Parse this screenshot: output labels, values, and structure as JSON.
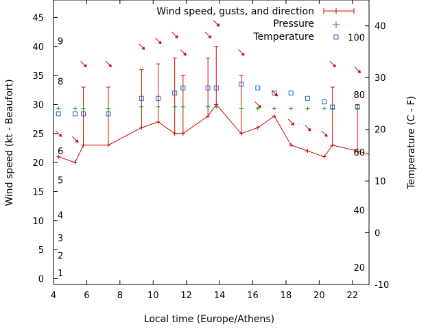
{
  "chart_data": {
    "type": "line",
    "xlabel": "Local time (Europe/Athens)",
    "ylabel": "Wind speed (kt - Beaufort)",
    "y2label": "Temperature (C - F)",
    "xlim": [
      4,
      23
    ],
    "ylim": [
      -1,
      48
    ],
    "y2lim": [
      -10,
      45
    ],
    "x_ticks": [
      "4",
      "6",
      "8",
      "10",
      "12",
      "14",
      "16",
      "18",
      "20",
      "22"
    ],
    "y_ticks": [
      "0",
      "5",
      "10",
      "15",
      "20",
      "25",
      "30",
      "35",
      "40",
      "45"
    ],
    "y2_ticks": [
      "-10",
      "0",
      "10",
      "20",
      "30",
      "40"
    ],
    "beaufort_labels": [
      {
        "text": "1",
        "kt": 1
      },
      {
        "text": "2",
        "kt": 4
      },
      {
        "text": "3",
        "kt": 7
      },
      {
        "text": "4",
        "kt": 11
      },
      {
        "text": "5",
        "kt": 17
      },
      {
        "text": "6",
        "kt": 22
      },
      {
        "text": "8",
        "kt": 34
      },
      {
        "text": "9",
        "kt": 41
      }
    ],
    "fahrenheit_labels": [
      {
        "text": "20",
        "c": -6.7
      },
      {
        "text": "40",
        "c": 4.4
      },
      {
        "text": "60",
        "c": 15.6
      },
      {
        "text": "80",
        "c": 26.7
      },
      {
        "text": "100",
        "c": 37.8
      }
    ],
    "legend": {
      "position": "top-right",
      "wind": "Wind speed, gusts, and direction",
      "pressure": "Pressure",
      "temperature": "Temperature"
    },
    "wind": {
      "x": [
        4.3,
        5.3,
        5.8,
        7.3,
        9.3,
        10.3,
        11.3,
        11.8,
        13.3,
        13.8,
        15.3,
        16.3,
        17.3,
        18.3,
        19.3,
        20.3,
        20.8,
        22.3,
        23.0
      ],
      "speed": [
        21,
        20,
        23,
        23,
        26,
        27,
        25,
        25,
        28,
        30,
        25,
        26,
        28,
        23,
        22,
        21,
        23,
        22,
        21.4
      ],
      "gust": [
        null,
        null,
        33,
        33,
        36,
        37,
        38,
        35,
        38,
        40,
        35,
        null,
        null,
        null,
        null,
        null,
        33,
        30,
        null
      ],
      "direction_arrow_x": [
        4.3,
        5.3,
        5.8,
        7.3,
        9.3,
        10.3,
        11.3,
        11.8,
        13.3,
        13.8,
        15.3,
        16.3,
        17.3,
        18.3,
        19.3,
        20.3,
        20.8,
        22.3
      ],
      "direction_arrow_y": [
        25,
        24,
        37,
        37,
        40,
        41,
        42,
        39,
        42,
        44,
        39,
        30,
        32,
        27,
        26,
        25,
        37,
        36
      ]
    },
    "pressure": {
      "x": [
        4.3,
        5.3,
        5.8,
        7.3,
        9.3,
        10.3,
        11.3,
        11.8,
        13.3,
        13.8,
        15.3,
        16.3,
        17.3,
        18.3,
        19.3,
        20.3,
        20.8,
        22.3
      ],
      "y": [
        29.3,
        29.3,
        29.3,
        29.3,
        29.6,
        29.6,
        29.6,
        29.6,
        29.6,
        29.6,
        29.3,
        29.3,
        29.3,
        29.3,
        29.3,
        29.3,
        29.3,
        29.3
      ]
    },
    "temperature": {
      "x": [
        4.3,
        5.3,
        5.8,
        7.3,
        9.3,
        10.3,
        11.3,
        11.8,
        13.3,
        13.8,
        15.3,
        16.3,
        17.3,
        18.3,
        19.3,
        20.3,
        20.8,
        22.3
      ],
      "c": [
        23,
        23,
        23,
        23,
        26,
        26,
        27,
        28,
        28,
        28,
        28.7,
        28,
        27,
        27,
        26,
        25.3,
        24.3,
        24.3
      ]
    },
    "colors": {
      "wind": "#cc0000",
      "pressure": "#00aa00",
      "temperature": "#1f5fbf",
      "axis": "#000000"
    }
  }
}
